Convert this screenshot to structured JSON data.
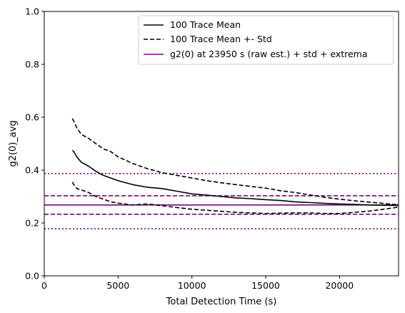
{
  "chart_data": {
    "type": "line",
    "title": "",
    "xlabel": "Total Detection Time (s)",
    "ylabel": "g2(0)_avg",
    "xlim": [
      0,
      24000
    ],
    "ylim": [
      0.0,
      1.0
    ],
    "xticks": [
      0,
      5000,
      10000,
      15000,
      20000
    ],
    "xtick_labels": [
      "0",
      "5000",
      "10000",
      "15000",
      "20000"
    ],
    "yticks": [
      0.0,
      0.2,
      0.4,
      0.6,
      0.8,
      1.0
    ],
    "ytick_labels": [
      "0.0",
      "0.2",
      "0.4",
      "0.6",
      "0.8",
      "1.0"
    ],
    "grid": false,
    "legend_position": "top-right",
    "legend": [
      {
        "label": "100 Trace Mean",
        "color": "#000000",
        "style": "solid"
      },
      {
        "label": "100 Trace Mean +- Std",
        "color": "#000000",
        "style": "dashed"
      },
      {
        "label": "g2(0) at 23950 s (raw est.) + std + extrema",
        "color": "#800080",
        "style": "solid"
      }
    ],
    "series": [
      {
        "name": "100 Trace Mean",
        "color": "#000000",
        "style": "solid",
        "x": [
          1900,
          2000,
          2200,
          2500,
          3000,
          3500,
          4000,
          4500,
          5000,
          6000,
          7000,
          8000,
          9000,
          10000,
          11000,
          12000,
          13000,
          14000,
          15000,
          16000,
          17000,
          18000,
          19000,
          20000,
          21000,
          22000,
          23000,
          24000
        ],
        "y": [
          0.475,
          0.47,
          0.45,
          0.43,
          0.415,
          0.395,
          0.38,
          0.37,
          0.36,
          0.345,
          0.335,
          0.33,
          0.32,
          0.31,
          0.305,
          0.3,
          0.295,
          0.292,
          0.288,
          0.285,
          0.28,
          0.277,
          0.274,
          0.272,
          0.27,
          0.268,
          0.267,
          0.266
        ]
      },
      {
        "name": "100 Trace Mean +- Std",
        "color": "#000000",
        "style": "dashed",
        "x": [
          1900,
          2000,
          2200,
          2500,
          3000,
          3500,
          4000,
          4500,
          5000,
          6000,
          7000,
          8000,
          9000,
          10000,
          11000,
          12000,
          13000,
          14000,
          15000,
          16000,
          17000,
          18000,
          19000,
          20000,
          21000,
          22000,
          23000,
          24000
        ],
        "y": [
          0.595,
          0.585,
          0.56,
          0.535,
          0.52,
          0.5,
          0.48,
          0.47,
          0.45,
          0.425,
          0.405,
          0.39,
          0.38,
          0.37,
          0.36,
          0.352,
          0.345,
          0.338,
          0.332,
          0.322,
          0.315,
          0.306,
          0.297,
          0.29,
          0.284,
          0.279,
          0.274,
          0.268
        ]
      },
      {
        "name": "100 Trace Mean +- Std",
        "color": "#000000",
        "style": "dashed",
        "x": [
          1900,
          2000,
          2200,
          2500,
          3000,
          3500,
          4000,
          4500,
          5000,
          6000,
          7000,
          8000,
          9000,
          10000,
          11000,
          12000,
          13000,
          14000,
          15000,
          16000,
          17000,
          18000,
          19000,
          20000,
          21000,
          22000,
          23000,
          24000
        ],
        "y": [
          0.355,
          0.345,
          0.33,
          0.325,
          0.315,
          0.3,
          0.29,
          0.28,
          0.275,
          0.268,
          0.272,
          0.265,
          0.258,
          0.252,
          0.248,
          0.244,
          0.24,
          0.238,
          0.236,
          0.237,
          0.238,
          0.238,
          0.236,
          0.236,
          0.24,
          0.245,
          0.252,
          0.26
        ]
      }
    ],
    "reference_lines": [
      {
        "y": 0.268,
        "color": "#800080",
        "style": "solid"
      },
      {
        "y": 0.303,
        "color": "#800080",
        "style": "dashed"
      },
      {
        "y": 0.233,
        "color": "#800080",
        "style": "dashed"
      },
      {
        "y": 0.387,
        "color": "#800080",
        "style": "dotted"
      },
      {
        "y": 0.178,
        "color": "#800080",
        "style": "dotted"
      }
    ]
  }
}
